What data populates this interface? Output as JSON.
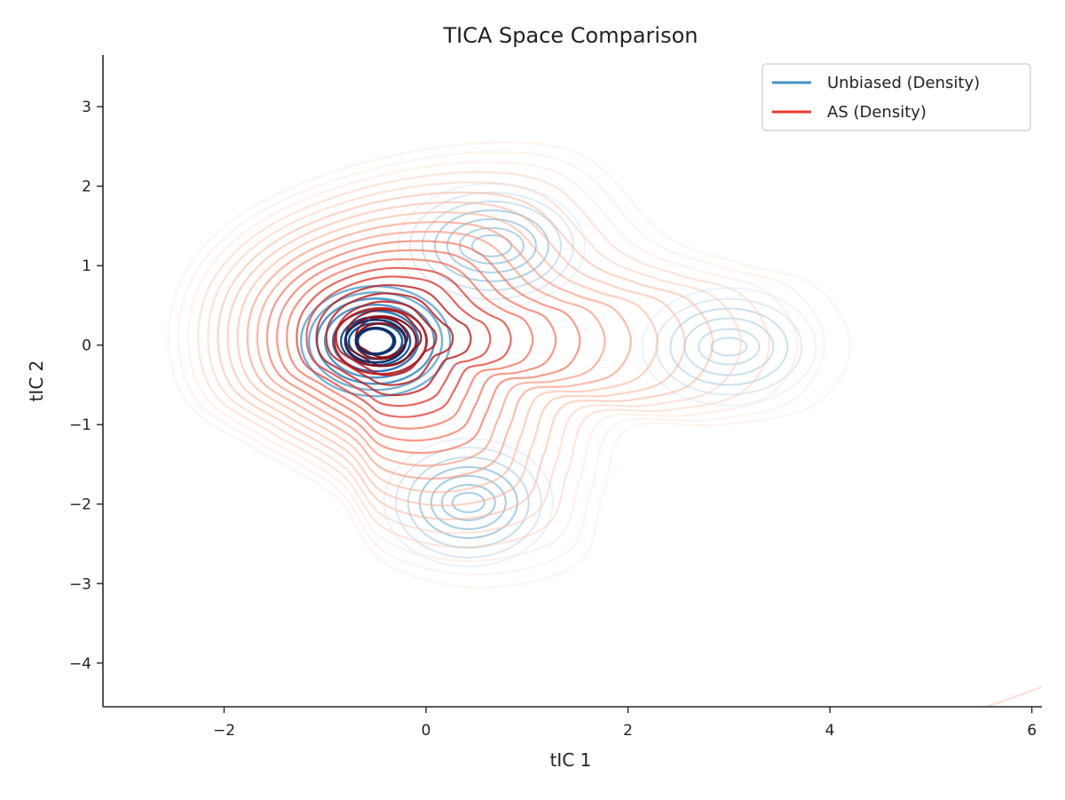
{
  "chart_data": {
    "type": "contour",
    "title": "TICA Space Comparison",
    "xlabel": "tIC 1",
    "ylabel": "tIC 2",
    "xlim": [
      -3.2,
      6.1
    ],
    "ylim": [
      -4.55,
      3.65
    ],
    "xticks": [
      -2,
      0,
      2,
      4,
      6
    ],
    "yticks": [
      -4,
      -3,
      -2,
      -1,
      0,
      1,
      2,
      3
    ],
    "xtick_labels": [
      "−2",
      "0",
      "2",
      "4",
      "6"
    ],
    "ytick_labels": [
      "−4",
      "−3",
      "−2",
      "−1",
      "0",
      "1",
      "2",
      "3"
    ],
    "grid": false,
    "legend_position": "top-right",
    "series": [
      {
        "name": "Unbiased (Density)",
        "color": "#4393c3",
        "style": "density-contours",
        "modes": [
          {
            "x": -0.5,
            "y": 0.05
          },
          {
            "x": 0.65,
            "y": 1.25
          },
          {
            "x": 0.42,
            "y": -1.98
          },
          {
            "x": 3.0,
            "y": -0.02
          }
        ]
      },
      {
        "name": "AS (Density)",
        "color": "#ef3b2c",
        "style": "density-contours",
        "modes": [
          {
            "x": -0.45,
            "y": 0.1
          }
        ],
        "extent": {
          "xmin": -2.55,
          "xmax": 4.2,
          "ymin": -3.05,
          "ymax": 2.55
        }
      }
    ]
  }
}
